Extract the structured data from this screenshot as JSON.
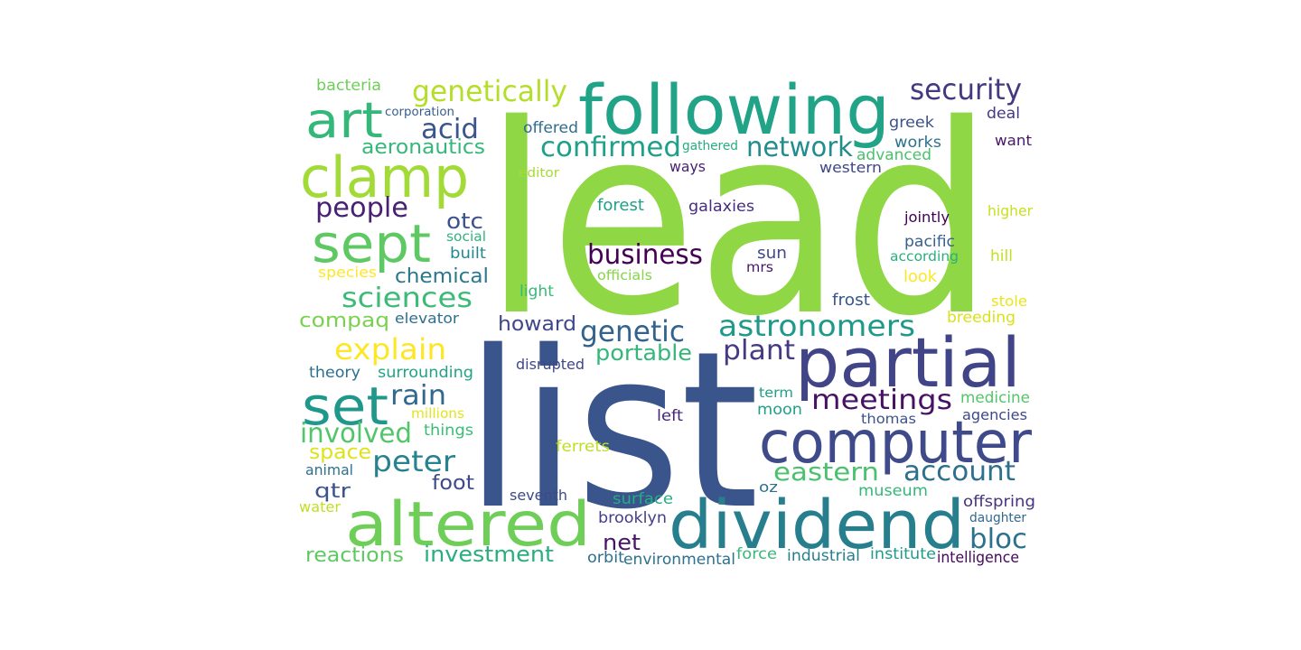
{
  "words": [
    {
      "text": "lead",
      "color": "#8fd744"
    },
    {
      "text": "list",
      "color": "#3a548c"
    },
    {
      "text": "following",
      "color": "#20a386"
    },
    {
      "text": "partial",
      "color": "#414487"
    },
    {
      "text": "computer",
      "color": "#3e4a89"
    },
    {
      "text": "dividend",
      "color": "#277f8e"
    },
    {
      "text": "altered",
      "color": "#6ece58"
    },
    {
      "text": "clamp",
      "color": "#a2da37"
    },
    {
      "text": "art",
      "color": "#35b779"
    },
    {
      "text": "sept",
      "color": "#5ec962"
    },
    {
      "text": "set",
      "color": "#1f988b"
    },
    {
      "text": "security",
      "color": "#453781"
    },
    {
      "text": "genetically",
      "color": "#b5de2b"
    },
    {
      "text": "acid",
      "color": "#39558c"
    },
    {
      "text": "confirmed",
      "color": "#1fa088"
    },
    {
      "text": "network",
      "color": "#228d8d"
    },
    {
      "text": "astronomers",
      "color": "#1f9a8a"
    },
    {
      "text": "meetings",
      "color": "#471164"
    },
    {
      "text": "business",
      "color": "#440154"
    },
    {
      "text": "genetic",
      "color": "#33638d"
    },
    {
      "text": "plant",
      "color": "#443983"
    },
    {
      "text": "account",
      "color": "#2d708e"
    },
    {
      "text": "eastern",
      "color": "#4ac16d"
    },
    {
      "text": "bloc",
      "color": "#2c728e"
    },
    {
      "text": "sciences",
      "color": "#3bbb75"
    },
    {
      "text": "explain",
      "color": "#fde725"
    },
    {
      "text": "people",
      "color": "#482173"
    },
    {
      "text": "aeronautics",
      "color": "#35b779"
    },
    {
      "text": "rain",
      "color": "#31688e"
    },
    {
      "text": "involved",
      "color": "#51c56a"
    },
    {
      "text": "peter",
      "color": "#26828e"
    },
    {
      "text": "investment",
      "color": "#29af7f"
    },
    {
      "text": "reactions",
      "color": "#5ec962"
    },
    {
      "text": "net",
      "color": "#481467"
    },
    {
      "text": "otc",
      "color": "#3b528b"
    },
    {
      "text": "chemical",
      "color": "#2a788e"
    },
    {
      "text": "compaq",
      "color": "#7ad151"
    },
    {
      "text": "howard",
      "color": "#3f4788"
    },
    {
      "text": "portable",
      "color": "#35b779"
    },
    {
      "text": "qtr",
      "color": "#3a548c"
    },
    {
      "text": "foot",
      "color": "#3e4a89"
    },
    {
      "text": "bacteria",
      "color": "#6ece58"
    },
    {
      "text": "corporation",
      "color": "#355f8d"
    },
    {
      "text": "offered",
      "color": "#2f6c8e"
    },
    {
      "text": "gathered",
      "color": "#25ab82"
    },
    {
      "text": "editor",
      "color": "#a8db34"
    },
    {
      "text": "ways",
      "color": "#481f70"
    },
    {
      "text": "forest",
      "color": "#1fa188"
    },
    {
      "text": "galaxies",
      "color": "#472d7b"
    },
    {
      "text": "sun",
      "color": "#3e4a89"
    },
    {
      "text": "mrs",
      "color": "#481769"
    },
    {
      "text": "officials",
      "color": "#86d549"
    },
    {
      "text": "frost",
      "color": "#39568c"
    },
    {
      "text": "greek",
      "color": "#3b528b"
    },
    {
      "text": "works",
      "color": "#2c728e"
    },
    {
      "text": "advanced",
      "color": "#4ac16d"
    },
    {
      "text": "western",
      "color": "#3f4788"
    },
    {
      "text": "deal",
      "color": "#453781"
    },
    {
      "text": "want",
      "color": "#481567"
    },
    {
      "text": "higher",
      "color": "#c8e020"
    },
    {
      "text": "jointly",
      "color": "#440154"
    },
    {
      "text": "pacific",
      "color": "#355f8d"
    },
    {
      "text": "according",
      "color": "#29af7f"
    },
    {
      "text": "look",
      "color": "#fde725"
    },
    {
      "text": "hill",
      "color": "#c2df23"
    },
    {
      "text": "stole",
      "color": "#eae51a"
    },
    {
      "text": "breeding",
      "color": "#d8e219"
    },
    {
      "text": "social",
      "color": "#2fb47c"
    },
    {
      "text": "built",
      "color": "#24878e"
    },
    {
      "text": "species",
      "color": "#fde725"
    },
    {
      "text": "light",
      "color": "#38b977"
    },
    {
      "text": "elevator",
      "color": "#2d708e"
    },
    {
      "text": "theory",
      "color": "#2d708e"
    },
    {
      "text": "surrounding",
      "color": "#20a386"
    },
    {
      "text": "disrupted",
      "color": "#3f4788"
    },
    {
      "text": "term",
      "color": "#1fa088"
    },
    {
      "text": "medicine",
      "color": "#54c568"
    },
    {
      "text": "moon",
      "color": "#1fa088"
    },
    {
      "text": "thomas",
      "color": "#3b528b"
    },
    {
      "text": "agencies",
      "color": "#3e4989"
    },
    {
      "text": "millions",
      "color": "#e5e419"
    },
    {
      "text": "things",
      "color": "#3bbb75"
    },
    {
      "text": "left",
      "color": "#482576"
    },
    {
      "text": "ferrets",
      "color": "#bddf26"
    },
    {
      "text": "space",
      "color": "#dde318"
    },
    {
      "text": "animal",
      "color": "#2d708e"
    },
    {
      "text": "seventh",
      "color": "#3e4989"
    },
    {
      "text": "surface",
      "color": "#26ad81"
    },
    {
      "text": "oz",
      "color": "#2d708e"
    },
    {
      "text": "museum",
      "color": "#35b779"
    },
    {
      "text": "offspring",
      "color": "#46337e"
    },
    {
      "text": "daughter",
      "color": "#31688e"
    },
    {
      "text": "water",
      "color": "#c0df25"
    },
    {
      "text": "brooklyn",
      "color": "#433e85"
    },
    {
      "text": "orbit",
      "color": "#2d708e"
    },
    {
      "text": "environmental",
      "color": "#2d708e"
    },
    {
      "text": "force",
      "color": "#38b977"
    },
    {
      "text": "industrial",
      "color": "#277f8e"
    },
    {
      "text": "institute",
      "color": "#1e9b8a"
    },
    {
      "text": "intelligence",
      "color": "#46085c"
    }
  ]
}
